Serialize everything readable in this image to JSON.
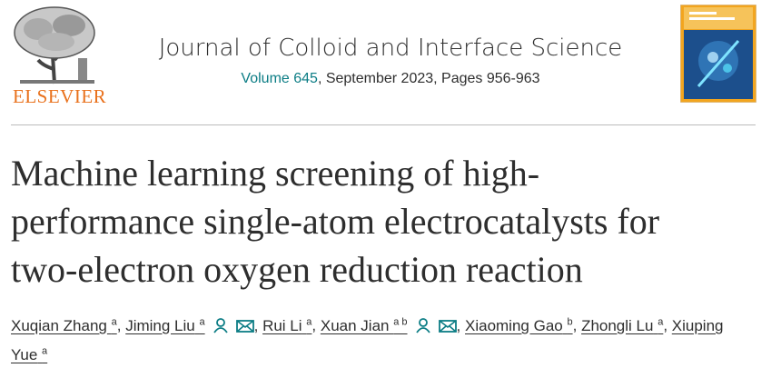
{
  "publisher": "ELSEVIER",
  "journal": {
    "name": "Journal of Colloid and Interface Science",
    "volume": "Volume 645",
    "issue_info": ", September 2023, Pages 956-963"
  },
  "article": {
    "title_lines": [
      "Machine learning screening of high-",
      "performance single-atom electrocatalysts for",
      "two-electron oxygen reduction reaction"
    ]
  },
  "authors": [
    {
      "name": "Xuqian Zhang",
      "sup": "a",
      "suffix": ","
    },
    {
      "name": "Jiming Liu",
      "sup": "a",
      "contact": true,
      "suffix": ","
    },
    {
      "name": "Rui Li",
      "sup": "a",
      "suffix": ","
    },
    {
      "name": "Xuan Jian",
      "sup": "a b",
      "contact": true,
      "suffix": ","
    },
    {
      "name": "Xiaoming Gao",
      "sup": "b",
      "suffix": ","
    },
    {
      "name": "Zhongli Lu",
      "sup": "a",
      "suffix": ","
    },
    {
      "name": "Xiuping Yue",
      "sup": "a"
    }
  ]
}
